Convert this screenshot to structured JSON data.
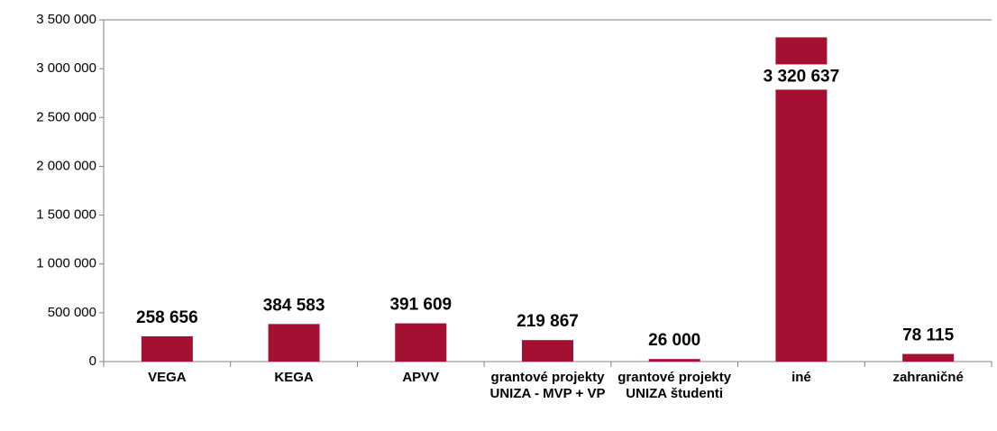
{
  "chart_data": {
    "type": "bar",
    "categories": [
      "VEGA",
      "KEGA",
      "APVV",
      "grantové projekty UNIZA - MVP + VP",
      "grantové projekty UNIZA študenti",
      "iné",
      "zahraničné"
    ],
    "values": [
      258656,
      384583,
      391609,
      219867,
      26000,
      3320637,
      78115
    ],
    "value_labels": [
      "258 656",
      "384 583",
      "391 609",
      "219 867",
      "26 000",
      "3 320 637",
      "78 115"
    ],
    "color": "#a50f31",
    "ylim": [
      0,
      3500000
    ],
    "yticks": [
      0,
      {
        "value": 500000,
        "label": "500 000"
      },
      {
        "value": 1000000,
        "label": "1 000 000"
      },
      {
        "value": 1500000,
        "label": "1 500 000"
      },
      {
        "value": 2000000,
        "label": "2 000 000"
      },
      {
        "value": 2500000,
        "label": "2 500 000"
      },
      {
        "value": 3000000,
        "label": "3 000 000"
      },
      {
        "value": 3500000,
        "label": "3 500 000"
      }
    ],
    "grid": false
  }
}
